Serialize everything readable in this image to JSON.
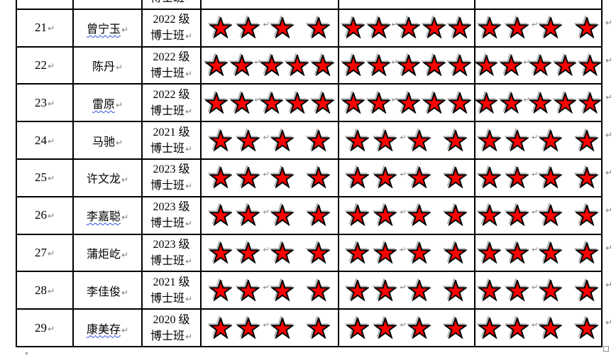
{
  "page": {
    "background": "#ffffff"
  },
  "marks": {
    "pilcrow": "↵"
  },
  "colors": {
    "star_fill": "#ff0000",
    "star_stroke": "#000000",
    "pilcrow_gray": "#808080",
    "squiggle_blue": "#2f52e0",
    "table_border": "#000000"
  },
  "partial_top_row": {
    "class_line2": "博士班"
  },
  "rows": [
    {
      "no": "21",
      "name": "曾宁玉",
      "name_underlined": true,
      "class_year": "2022 级",
      "class_label": "博士班",
      "stars": [
        4,
        5,
        4
      ]
    },
    {
      "no": "22",
      "name": "陈丹",
      "name_underlined": false,
      "class_year": "2022 级",
      "class_label": "博士班",
      "stars": [
        5,
        5,
        5
      ]
    },
    {
      "no": "23",
      "name": "雷原",
      "name_underlined": true,
      "class_year": "2022 级",
      "class_label": "博士班",
      "stars": [
        5,
        5,
        5
      ]
    },
    {
      "no": "24",
      "name": "马驰",
      "name_underlined": false,
      "class_year": "2021 级",
      "class_label": "博士班",
      "stars": [
        4,
        4,
        4
      ]
    },
    {
      "no": "25",
      "name": "许文龙",
      "name_underlined": false,
      "class_year": "2023 级",
      "class_label": "博士班",
      "stars": [
        4,
        4,
        4
      ]
    },
    {
      "no": "26",
      "name": "李嘉聪",
      "name_underlined": true,
      "class_year": "2023 级",
      "class_label": "博士班",
      "stars": [
        4,
        4,
        4
      ]
    },
    {
      "no": "27",
      "name": "蒲炬屹",
      "name_underlined": false,
      "class_year": "2023 级",
      "class_label": "博士班",
      "stars": [
        4,
        4,
        4
      ]
    },
    {
      "no": "28",
      "name": "李佳俊",
      "name_underlined": false,
      "class_year": "2021 级",
      "class_label": "博士班",
      "stars": [
        4,
        4,
        4
      ]
    },
    {
      "no": "29",
      "name": "康美存",
      "name_underlined": true,
      "class_year": "2020 级",
      "class_label": "博士班",
      "stars": [
        4,
        4,
        4
      ]
    }
  ]
}
